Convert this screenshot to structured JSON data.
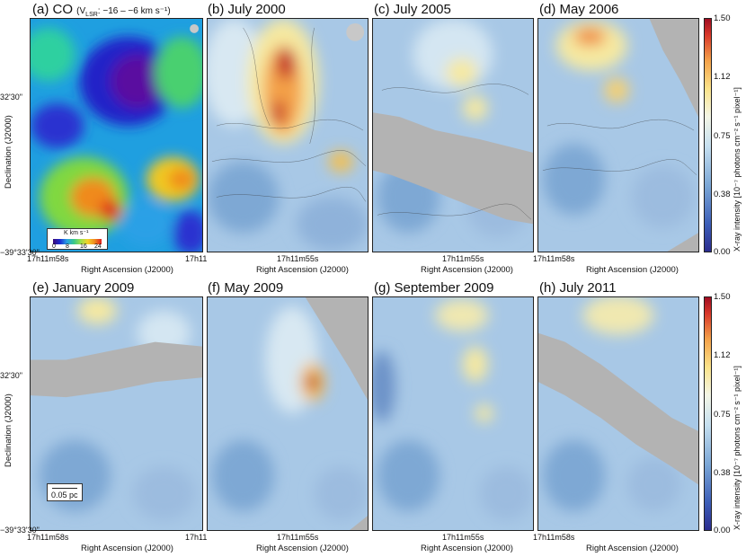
{
  "panels": [
    {
      "title": "(a) CO",
      "subtitle": "(V",
      "subtitle_lsr": "LSR",
      "subtitle_tail": ": −16 – −6 km s⁻¹)"
    },
    {
      "title": "(b) July 2000"
    },
    {
      "title": "(c) July 2005"
    },
    {
      "title": "(d) May 2006"
    },
    {
      "title": "(e) January 2009"
    },
    {
      "title": "(f) May 2009"
    },
    {
      "title": "(g) September 2009"
    },
    {
      "title": "(h) July 2011"
    }
  ],
  "axes": {
    "ylabel": "Declination (J2000)",
    "xlabel": "Right Ascension (J2000)",
    "ytick_top": "32'30\"",
    "ytick_bottom": "−39°33'30\"",
    "xtick_left": "17h11m58s",
    "xtick_mid": "17h11m55s",
    "xtick_right": "17h11"
  },
  "colorbar": {
    "label": "X-ray intensity [10⁻⁷ photons cm⁻² s⁻¹ pixel⁻¹]",
    "ticks": [
      "1.50",
      "1.12",
      "0.75",
      "0.38",
      "0.00"
    ]
  },
  "co_legend": {
    "unit": "K km s⁻¹",
    "ticks": [
      "0",
      "8",
      "16",
      "24"
    ]
  },
  "scalebar": {
    "label": "0.05 pc"
  },
  "colors": {
    "low": "#3d5fb8",
    "mid": "#c5dff0",
    "high": "#d9382a",
    "mask": "#b3b3b3"
  }
}
